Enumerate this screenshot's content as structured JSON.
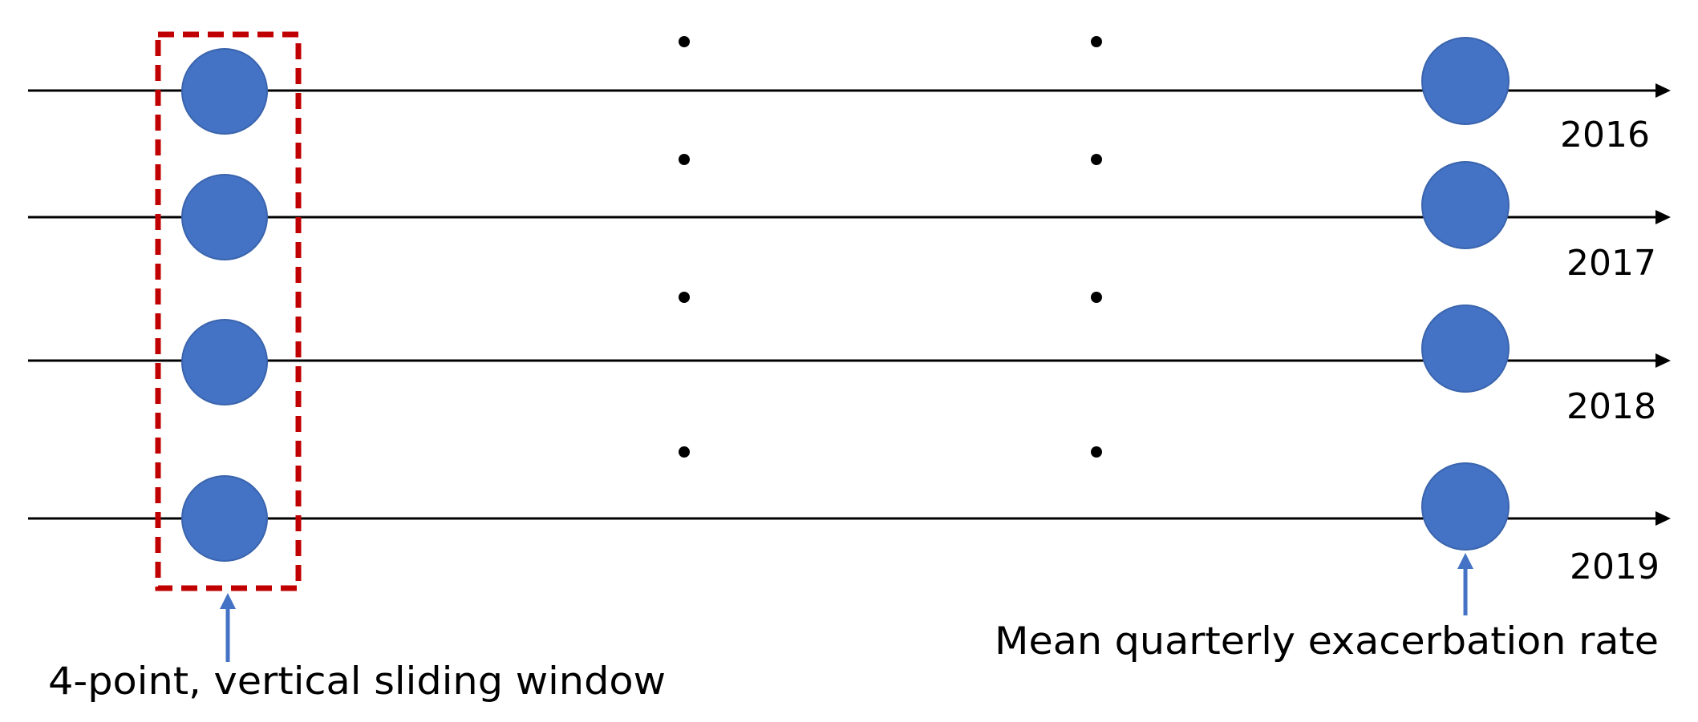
{
  "rows": [
    {
      "year": "2016"
    },
    {
      "year": "2017"
    },
    {
      "year": "2018"
    },
    {
      "year": "2019"
    }
  ],
  "window_caption": "4-point, vertical sliding window",
  "rate_caption": "Mean quarterly exacerbation rate",
  "colors": {
    "circle": "#4472C4",
    "window_border": "#C00000",
    "pointer": "#4472C4",
    "line": "#000000"
  }
}
